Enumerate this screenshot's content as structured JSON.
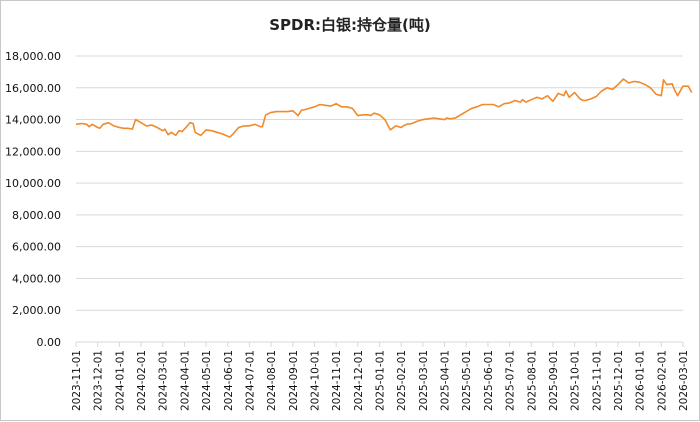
{
  "chart_data": {
    "type": "line",
    "title": "SPDR:白银:持仓量(吨)",
    "xlabel": "",
    "ylabel": "",
    "ylim": [
      0,
      18000
    ],
    "yticks": [
      0,
      2000,
      4000,
      6000,
      8000,
      10000,
      12000,
      14000,
      16000,
      18000
    ],
    "ytick_labels": [
      "0.00",
      "2,000.00",
      "4,000.00",
      "6,000.00",
      "8,000.00",
      "10,000.00",
      "12,000.00",
      "14,000.00",
      "16,000.00",
      "18,000.00"
    ],
    "xtick_labels": [
      "2023-11-01",
      "2023-12-01",
      "2024-01-01",
      "2024-02-01",
      "2024-03-01",
      "2024-04-01",
      "2024-05-01",
      "2024-06-01",
      "2024-07-01",
      "2024-08-01",
      "2024-09-01",
      "2024-10-01",
      "2024-11-01",
      "2024-12-01",
      "2025-01-01",
      "2025-02-01",
      "2025-03-01",
      "2025-04-01",
      "2025-05-01",
      "2025-06-01",
      "2025-07-01",
      "2025-08-01",
      "2025-09-01",
      "2025-10-01",
      "2025-11-01",
      "2025-12-01",
      "2026-01-01",
      "2026-02-01",
      "2026-03-01"
    ],
    "grid": true,
    "legend": false,
    "line_color": "#f08a2c",
    "series": [
      {
        "name": "SPDR:白银:持仓量(吨)",
        "x": [
          0,
          0.25,
          0.5,
          0.6,
          0.75,
          1.0,
          1.1,
          1.25,
          1.5,
          1.75,
          2.0,
          2.2,
          2.4,
          2.6,
          2.75,
          3.0,
          3.25,
          3.5,
          3.75,
          4.0,
          4.1,
          4.25,
          4.4,
          4.6,
          4.75,
          4.9,
          5.1,
          5.25,
          5.4,
          5.5,
          5.75,
          6.0,
          6.25,
          6.5,
          6.75,
          7.0,
          7.1,
          7.25,
          7.5,
          7.75,
          8.0,
          8.25,
          8.5,
          8.6,
          8.75,
          9.0,
          9.25,
          9.5,
          9.75,
          10.0,
          10.25,
          10.4,
          10.5,
          10.75,
          11.0,
          11.25,
          11.5,
          11.75,
          12.0,
          12.25,
          12.5,
          12.75,
          13.0,
          13.25,
          13.5,
          13.6,
          13.75,
          14.0,
          14.25,
          14.5,
          14.75,
          15.0,
          15.1,
          15.25,
          15.5,
          15.75,
          16.0,
          16.25,
          16.5,
          16.75,
          17.0,
          17.1,
          17.25,
          17.5,
          17.75,
          18.0,
          18.25,
          18.5,
          18.75,
          19.0,
          19.25,
          19.5,
          19.75,
          20.0,
          20.25,
          20.5,
          20.6,
          20.75,
          21.0,
          21.25,
          21.5,
          21.75,
          22.0,
          22.25,
          22.5,
          22.6,
          22.75,
          23.0,
          23.25,
          23.4,
          23.5,
          23.75,
          24.0,
          24.25,
          24.5,
          24.75,
          25.0,
          25.25,
          25.5,
          25.75,
          26.0,
          26.25,
          26.5,
          26.75,
          27.0,
          27.1,
          27.25,
          27.5,
          27.6,
          27.75,
          28.0,
          28.25,
          28.4
        ],
        "values": [
          13700,
          13750,
          13700,
          13550,
          13700,
          13500,
          13450,
          13700,
          13800,
          13600,
          13500,
          13450,
          13450,
          13400,
          14000,
          13800,
          13600,
          13650,
          13500,
          13300,
          13400,
          13050,
          13200,
          13000,
          13300,
          13250,
          13550,
          13800,
          13750,
          13200,
          13000,
          13350,
          13300,
          13200,
          13100,
          12950,
          12900,
          13100,
          13500,
          13600,
          13600,
          13700,
          13550,
          13550,
          14300,
          14450,
          14500,
          14500,
          14500,
          14550,
          14250,
          14600,
          14600,
          14700,
          14800,
          14950,
          14900,
          14850,
          15000,
          14800,
          14800,
          14700,
          14250,
          14300,
          14300,
          14250,
          14400,
          14300,
          14000,
          13350,
          13600,
          13500,
          13600,
          13700,
          13750,
          13900,
          14000,
          14050,
          14100,
          14050,
          14000,
          14100,
          14050,
          14100,
          14300,
          14500,
          14700,
          14800,
          14950,
          14950,
          14950,
          14800,
          15000,
          15050,
          15200,
          15100,
          15250,
          15100,
          15250,
          15400,
          15300,
          15500,
          15150,
          15650,
          15500,
          15800,
          15400,
          15700,
          15300,
          15200,
          15200,
          15300,
          15450,
          15800,
          16000,
          15900,
          16200,
          16550,
          16300,
          16400,
          16350,
          16200,
          16000,
          15600,
          15500,
          16500,
          16200,
          16250,
          15900,
          15500,
          16100,
          16100,
          15700
        ]
      }
    ]
  }
}
